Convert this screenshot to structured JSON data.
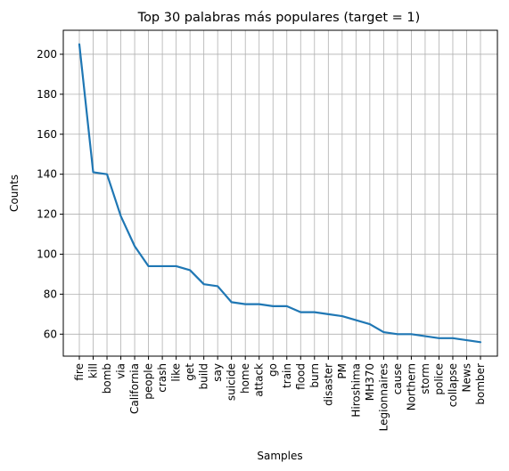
{
  "chart_data": {
    "type": "line",
    "title": "Top 30 palabras más populares (target = 1)",
    "xlabel": "Samples",
    "ylabel": "Counts",
    "categories": [
      "fire",
      "kill",
      "bomb",
      "via",
      "California",
      "people",
      "crash",
      "like",
      "get",
      "build",
      "say",
      "suicide",
      "home",
      "attack",
      "go",
      "train",
      "flood",
      "burn",
      "disaster",
      "PM",
      "Hiroshima",
      "MH370",
      "Legionnaires",
      "cause",
      "Northern",
      "storm",
      "police",
      "collapse",
      "News",
      "bomber"
    ],
    "values": [
      205,
      141,
      140,
      119,
      104,
      94,
      94,
      94,
      92,
      85,
      84,
      76,
      75,
      75,
      74,
      74,
      71,
      71,
      70,
      69,
      67,
      65,
      61,
      60,
      60,
      59,
      58,
      58,
      57,
      56
    ],
    "ylim": [
      49,
      212
    ],
    "yticks": [
      60,
      80,
      100,
      120,
      140,
      160,
      180,
      200
    ],
    "grid": true,
    "series_color": "#1f77b4"
  }
}
